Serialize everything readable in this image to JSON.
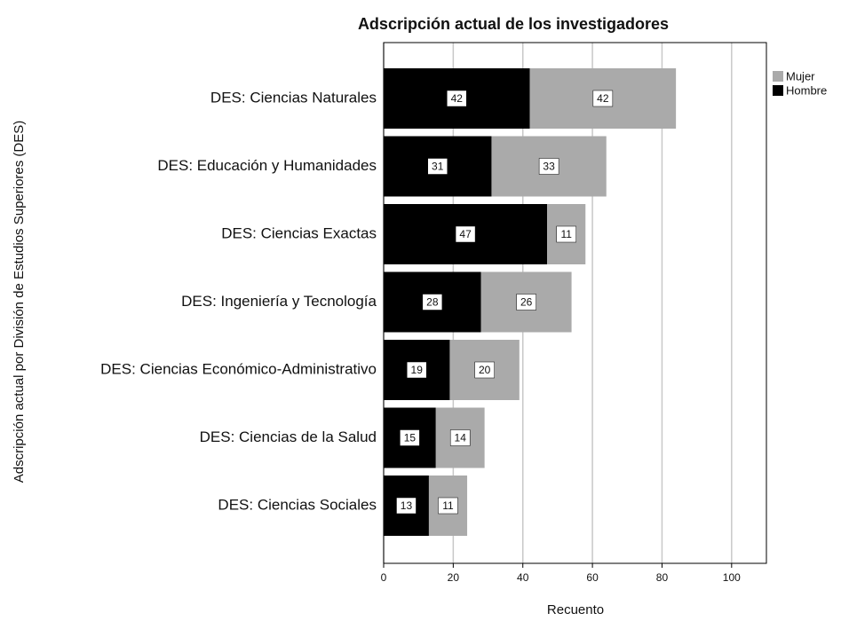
{
  "chart_data": {
    "type": "stacked-barh",
    "title": "Adscripción actual de los investigadores",
    "xlabel": "Recuento",
    "ylabel": "Adscripción actual por División de Estudios Superiores (DES)",
    "categories": [
      "DES: Ciencias Naturales",
      "DES: Educación y Humanidades",
      "DES: Ciencias Exactas",
      "DES: Ingeniería y Tecnología",
      "DES: Ciencias Económico-Administrativo",
      "DES: Ciencias de la Salud",
      "DES: Ciencias Sociales"
    ],
    "series": [
      {
        "name": "Mujer",
        "color": "#aaaaaa",
        "values": [
          42,
          33,
          11,
          26,
          20,
          14,
          11
        ]
      },
      {
        "name": "Hombre",
        "color": "#000000",
        "values": [
          42,
          31,
          47,
          28,
          19,
          15,
          13
        ]
      }
    ],
    "xlim": [
      0,
      110
    ],
    "xticks": [
      0,
      20,
      40,
      60,
      80,
      100
    ],
    "grid": true,
    "legend": "top-right"
  }
}
